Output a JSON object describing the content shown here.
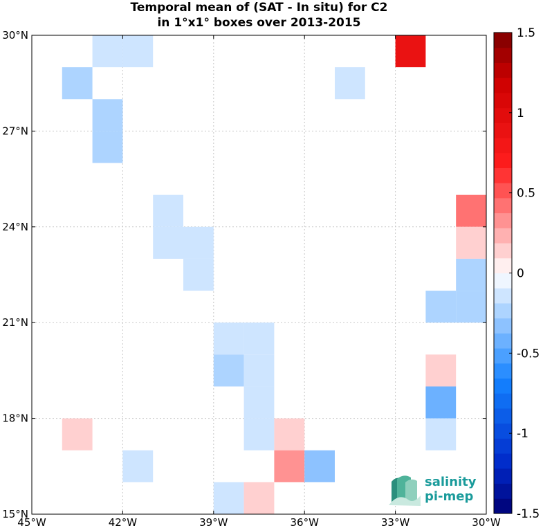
{
  "chart_data": {
    "type": "heatmap",
    "title_lines": [
      "Temporal mean of (SAT - In situ) for C2",
      "in 1°x1° boxes over 2013-2015"
    ],
    "xlim": [
      -45,
      -30
    ],
    "ylim": [
      15,
      30
    ],
    "x_ticks": [
      {
        "value": -45,
        "label": "45°W"
      },
      {
        "value": -42,
        "label": "42°W"
      },
      {
        "value": -39,
        "label": "39°W"
      },
      {
        "value": -36,
        "label": "36°W"
      },
      {
        "value": -33,
        "label": "33°W"
      },
      {
        "value": -30,
        "label": "30°W"
      }
    ],
    "y_ticks": [
      {
        "value": 30,
        "label": "30°N"
      },
      {
        "value": 27,
        "label": "27°N"
      },
      {
        "value": 24,
        "label": "24°N"
      },
      {
        "value": 21,
        "label": "21°N"
      },
      {
        "value": 18,
        "label": "18°N"
      },
      {
        "value": 15,
        "label": "15°N"
      }
    ],
    "grid": true,
    "colorbar": {
      "range": [
        -1.5,
        1.5
      ],
      "ticks": [
        {
          "value": 1.5,
          "label": "1.5"
        },
        {
          "value": 1,
          "label": "1"
        },
        {
          "value": 0.5,
          "label": "0.5"
        },
        {
          "value": 0,
          "label": "0"
        },
        {
          "value": -0.5,
          "label": "-0.5"
        },
        {
          "value": -1,
          "label": "-1"
        },
        {
          "value": -1.5,
          "label": "-1.5"
        }
      ]
    },
    "cells": [
      {
        "lon": -43,
        "lat": 29,
        "value": -0.1
      },
      {
        "lon": -42,
        "lat": 29,
        "value": -0.1
      },
      {
        "lon": -44,
        "lat": 28,
        "value": -0.2
      },
      {
        "lon": -43,
        "lat": 27,
        "value": -0.2
      },
      {
        "lon": -43,
        "lat": 26,
        "value": -0.2
      },
      {
        "lon": -35,
        "lat": 28,
        "value": -0.1
      },
      {
        "lon": -33,
        "lat": 29,
        "value": 0.85
      },
      {
        "lon": -41,
        "lat": 24,
        "value": -0.1
      },
      {
        "lon": -41,
        "lat": 23,
        "value": -0.1
      },
      {
        "lon": -40,
        "lat": 23,
        "value": -0.1
      },
      {
        "lon": -40,
        "lat": 22,
        "value": -0.1
      },
      {
        "lon": -31,
        "lat": 24,
        "value": 0.4
      },
      {
        "lon": -31,
        "lat": 23,
        "value": 0.15
      },
      {
        "lon": -31,
        "lat": 22,
        "value": -0.2
      },
      {
        "lon": -31,
        "lat": 21,
        "value": -0.2
      },
      {
        "lon": -32,
        "lat": 21,
        "value": -0.2
      },
      {
        "lon": -39,
        "lat": 20,
        "value": -0.1
      },
      {
        "lon": -38,
        "lat": 20,
        "value": -0.1
      },
      {
        "lon": -39,
        "lat": 19,
        "value": -0.25
      },
      {
        "lon": -38,
        "lat": 19,
        "value": -0.1
      },
      {
        "lon": -38,
        "lat": 18,
        "value": -0.1
      },
      {
        "lon": -38,
        "lat": 17,
        "value": -0.1
      },
      {
        "lon": -32,
        "lat": 19,
        "value": 0.15
      },
      {
        "lon": -32,
        "lat": 18,
        "value": -0.45
      },
      {
        "lon": -32,
        "lat": 17,
        "value": -0.1
      },
      {
        "lon": -44,
        "lat": 17,
        "value": 0.15
      },
      {
        "lon": -37,
        "lat": 17,
        "value": 0.15
      },
      {
        "lon": -37,
        "lat": 16,
        "value": 0.3
      },
      {
        "lon": -36,
        "lat": 16,
        "value": -0.35
      },
      {
        "lon": -42,
        "lat": 16,
        "value": -0.1
      },
      {
        "lon": -39,
        "lat": 15,
        "value": -0.1
      },
      {
        "lon": -38,
        "lat": 15,
        "value": 0.15
      }
    ]
  },
  "logo": {
    "line1": "salinity",
    "line2": "pi-mep",
    "color": "#1a9b9b"
  }
}
